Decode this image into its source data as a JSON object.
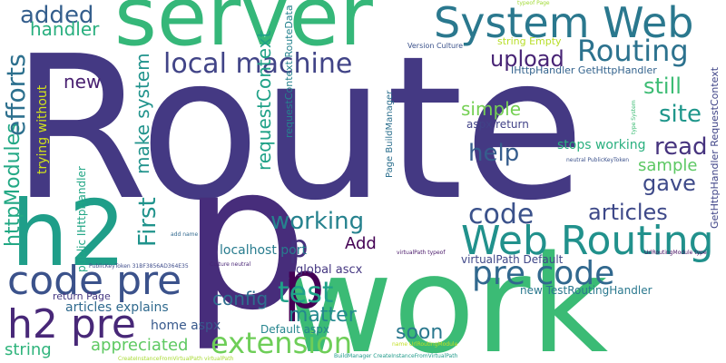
{
  "words": [
    {
      "text": "Route",
      "color": "#443983"
    },
    {
      "text": "p",
      "color": "#472d7b"
    },
    {
      "text": "work",
      "color": "#3bbb75"
    },
    {
      "text": "server",
      "color": "#35b779"
    },
    {
      "text": "h2",
      "color": "#1f9e89"
    },
    {
      "text": "p",
      "color": "#440154"
    },
    {
      "text": "System Web",
      "color": "#2a788e"
    },
    {
      "text": "Web Routing",
      "color": "#21918c"
    },
    {
      "text": "code pre",
      "color": "#3b528b"
    },
    {
      "text": "h2 pre",
      "color": "#482878"
    },
    {
      "text": "pre code",
      "color": "#31688e"
    },
    {
      "text": "extension",
      "color": "#6ece58"
    },
    {
      "text": "Routing",
      "color": "#2c728e"
    },
    {
      "text": "local machine",
      "color": "#414487"
    },
    {
      "text": "test",
      "color": "#1fa188"
    },
    {
      "text": "code",
      "color": "#3b528b"
    },
    {
      "text": "working",
      "color": "#26828e"
    },
    {
      "text": "p",
      "color": "#46327e"
    },
    {
      "text": "added",
      "color": "#355f8d"
    },
    {
      "text": "httpModules",
      "color": "#22a884"
    },
    {
      "text": "efforts",
      "color": "#2d708e"
    },
    {
      "text": "handler",
      "color": "#29af7f"
    },
    {
      "text": "upload",
      "color": "#482475"
    },
    {
      "text": "still",
      "color": "#3dbc74"
    },
    {
      "text": "site",
      "color": "#1f968b"
    },
    {
      "text": "read",
      "color": "#46337e"
    },
    {
      "text": "articles",
      "color": "#3e4989"
    },
    {
      "text": "help",
      "color": "#365d8d"
    },
    {
      "text": "gave",
      "color": "#3e4a89"
    },
    {
      "text": "simple",
      "color": "#75d054"
    },
    {
      "text": "First",
      "color": "#20938c"
    },
    {
      "text": "make system",
      "color": "#20938c"
    },
    {
      "text": "requestContext",
      "color": "#1fa187"
    },
    {
      "text": "sample",
      "color": "#5cc863"
    },
    {
      "text": "new",
      "color": "#481f70"
    },
    {
      "text": "matter",
      "color": "#23888e"
    },
    {
      "text": "soon",
      "color": "#2a788e"
    },
    {
      "text": "config",
      "color": "#2e6e8e"
    },
    {
      "text": "Add",
      "color": "#440154"
    },
    {
      "text": "appreciated",
      "color": "#5ec962"
    },
    {
      "text": "string",
      "color": "#2fb47c"
    },
    {
      "text": "articles explains",
      "color": "#306a8e"
    },
    {
      "text": "home aspx",
      "color": "#38598c"
    },
    {
      "text": "stops working",
      "color": "#2ab07f"
    },
    {
      "text": "localhost port",
      "color": "#287c8e"
    },
    {
      "text": "global ascx",
      "color": "#453781"
    },
    {
      "text": "aspx return",
      "color": "#414287"
    },
    {
      "text": "trying without",
      "color": "#d0e11c"
    },
    {
      "text": "virtualPath Default",
      "color": "#3f4788"
    },
    {
      "text": "new TestRoutingHandler",
      "color": "#2a788e"
    },
    {
      "text": "Default aspx",
      "color": "#25858e"
    },
    {
      "text": "return Page",
      "color": "#453882"
    },
    {
      "text": "public IHttpHandler",
      "color": "#21a685"
    },
    {
      "text": "requestContext RouteData",
      "color": "#26828e"
    },
    {
      "text": "string Empty",
      "color": "#b8de29"
    },
    {
      "text": "Version Culture",
      "color": "#3b528b"
    },
    {
      "text": "IHttpHandler GetHttpHandler",
      "color": "#33638d"
    },
    {
      "text": "GetHttpHandler RequestContext",
      "color": "#404588"
    },
    {
      "text": "Page BuildManager",
      "color": "#2d708e"
    },
    {
      "text": "typeof Page",
      "color": "#a2da37"
    },
    {
      "text": "type System",
      "color": "#3dbc74"
    },
    {
      "text": "Culture neutral",
      "color": "#482576"
    },
    {
      "text": "neutral PublicKeyToken",
      "color": "#3b518b"
    },
    {
      "text": "UrlRoutingModule type",
      "color": "#471063"
    },
    {
      "text": "PublicKeyToken 31BF3856AD364E35",
      "color": "#3e4c8a"
    },
    {
      "text": "virtualPath typeof",
      "color": "#481769"
    },
    {
      "text": "add name",
      "color": "#31688e"
    },
    {
      "text": "name UrlRoutingModule",
      "color": "#c2df23"
    },
    {
      "text": "BuildManager CreateInstanceFromVirtualPath",
      "color": "#1f9a8a"
    },
    {
      "text": "CreateInstanceFromVirtualPath virtualPath",
      "color": "#a8db34"
    }
  ]
}
